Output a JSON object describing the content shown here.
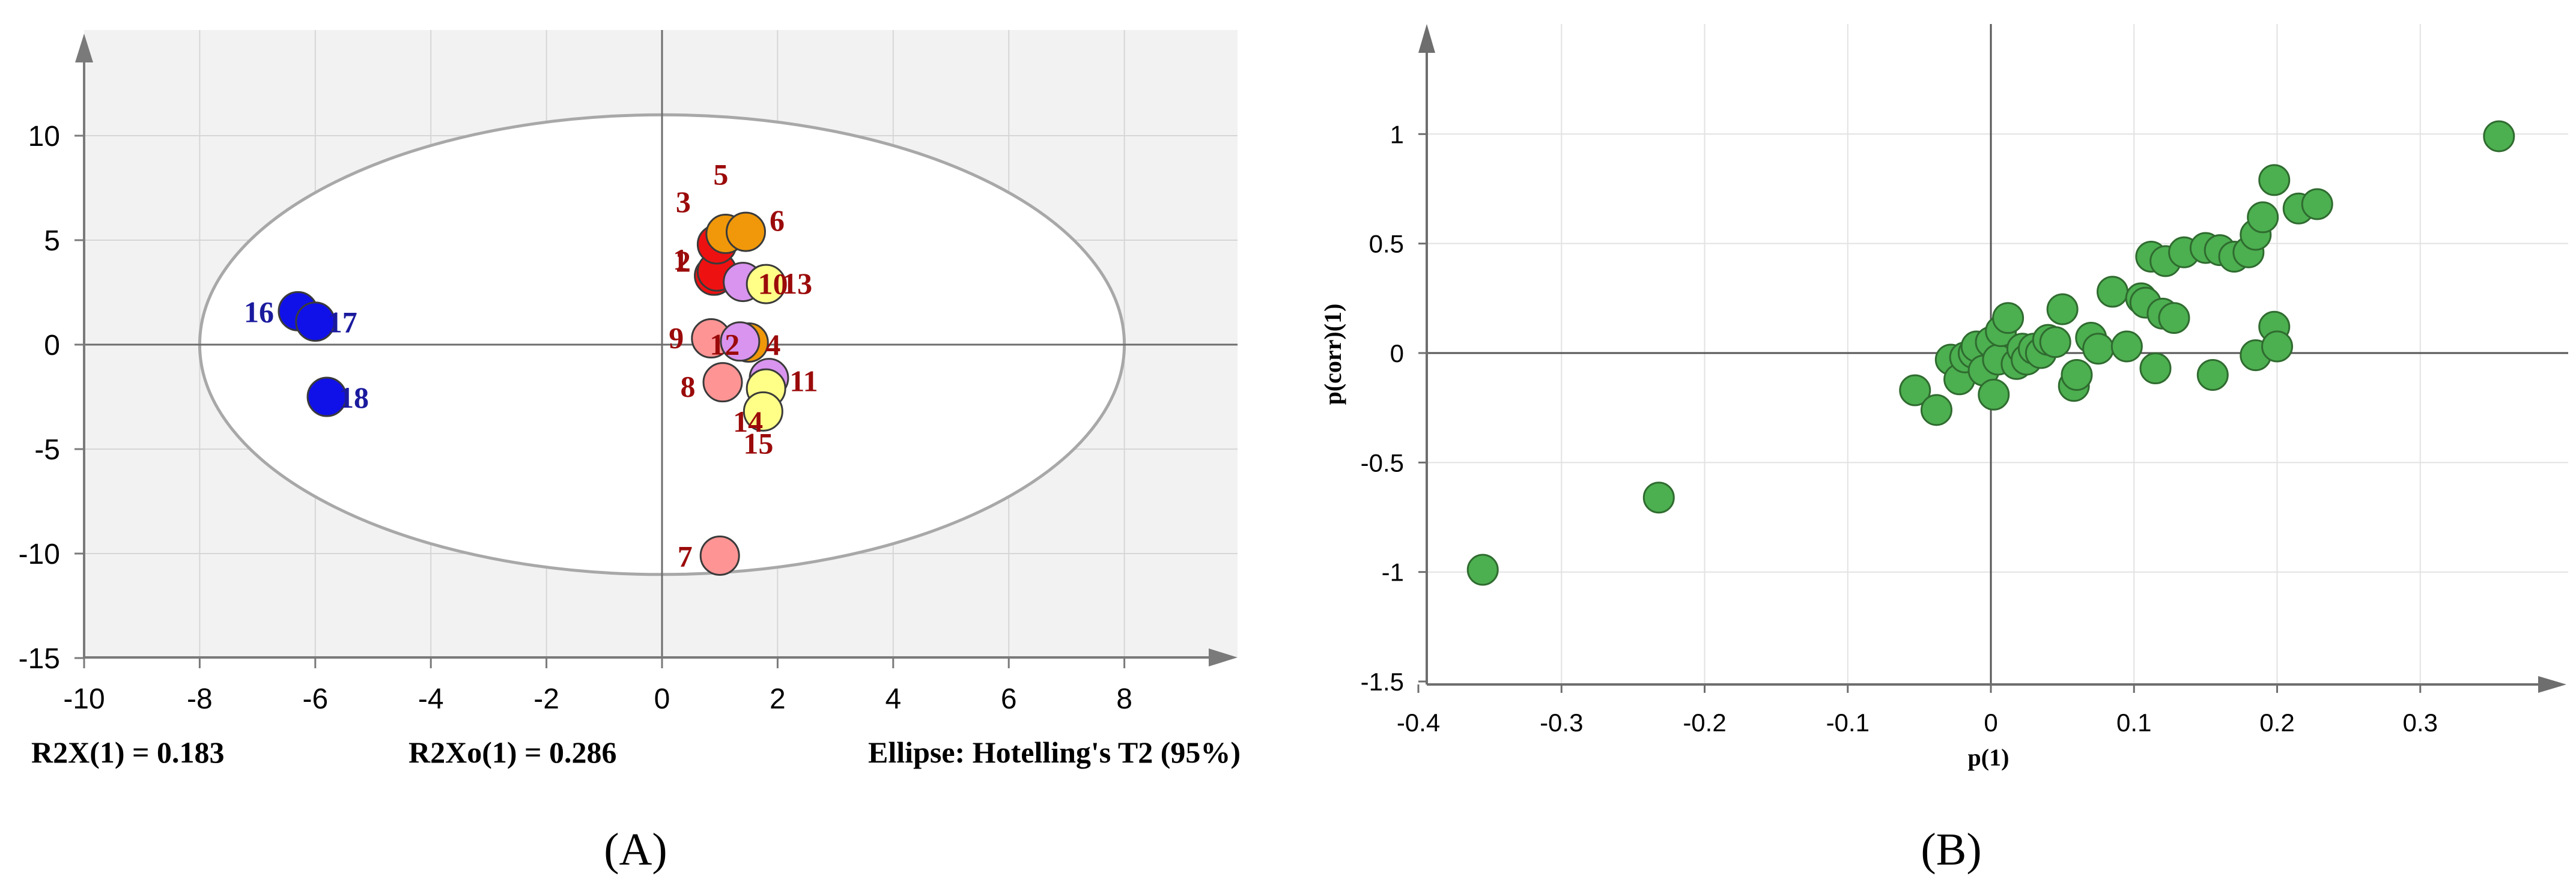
{
  "chart_data": [
    {
      "type": "scatter",
      "panel_label": "(A)",
      "xlim": [
        -10,
        10
      ],
      "ylim": [
        -15,
        15
      ],
      "x_ticks": [
        -10,
        -8,
        -6,
        -4,
        -2,
        0,
        2,
        4,
        6,
        8
      ],
      "y_ticks": [
        -15,
        -10,
        -5,
        0,
        5,
        10
      ],
      "grid": true,
      "annotations": [
        "R2X(1) = 0.183",
        "R2Xo(1) = 0.286",
        "Ellipse: Hotelling's T2 (95%)"
      ],
      "ellipse": {
        "center": [
          0,
          0
        ],
        "rx": 8,
        "ry": 11
      },
      "colors": {
        "red": "#ee1111",
        "orange": "#f0980a",
        "violet": "#d894ee",
        "yellow": "#ffff88",
        "salmon": "#ff9494",
        "blue": "#1010e8",
        "label_red": "#9b0a0a",
        "label_blue": "#1a1a9e"
      },
      "points": [
        {
          "label": "1",
          "x": 0.9,
          "y": 3.3,
          "color": "red",
          "label_color": "label_red"
        },
        {
          "label": "2",
          "x": 0.95,
          "y": 3.5,
          "color": "red",
          "label_color": "label_red"
        },
        {
          "label": "3",
          "x": 0.95,
          "y": 4.8,
          "color": "red",
          "label_color": "label_red"
        },
        {
          "label": "5",
          "x": 1.1,
          "y": 5.3,
          "color": "orange",
          "label_color": "label_red"
        },
        {
          "label": "6",
          "x": 1.45,
          "y": 5.4,
          "color": "orange",
          "label_color": "label_red"
        },
        {
          "label": "10",
          "x": 1.4,
          "y": 3.0,
          "color": "violet",
          "label_color": "label_red"
        },
        {
          "label": "13",
          "x": 1.8,
          "y": 2.9,
          "color": "yellow",
          "label_color": "label_red"
        },
        {
          "label": "9",
          "x": 0.85,
          "y": 0.3,
          "color": "salmon",
          "label_color": "label_red"
        },
        {
          "label": "12",
          "x": 1.5,
          "y": 0.1,
          "color": "orange",
          "label_color": "label_red"
        },
        {
          "label": "4",
          "x": 1.35,
          "y": 0.15,
          "color": "violet",
          "label_color": "label_red"
        },
        {
          "label": "8",
          "x": 1.05,
          "y": -1.8,
          "color": "salmon",
          "label_color": "label_red"
        },
        {
          "label": "11",
          "x": 1.85,
          "y": -1.6,
          "color": "violet",
          "label_color": "label_red"
        },
        {
          "label": "14",
          "x": 1.8,
          "y": -2.1,
          "color": "yellow",
          "label_color": "label_red"
        },
        {
          "label": "15",
          "x": 1.75,
          "y": -3.2,
          "color": "yellow",
          "label_color": "label_red"
        },
        {
          "label": "7",
          "x": 1.0,
          "y": -10.1,
          "color": "salmon",
          "label_color": "label_red"
        },
        {
          "label": "16",
          "x": -6.3,
          "y": 1.6,
          "color": "blue",
          "label_color": "label_blue"
        },
        {
          "label": "17",
          "x": -6.0,
          "y": 1.1,
          "color": "blue",
          "label_color": "label_blue"
        },
        {
          "label": "18",
          "x": -5.8,
          "y": -2.5,
          "color": "blue",
          "label_color": "label_blue"
        }
      ]
    },
    {
      "type": "scatter",
      "panel_label": "(B)",
      "xlabel": "p(1)",
      "ylabel": "p(corr)(1)",
      "xlim": [
        -0.4,
        0.4
      ],
      "ylim": [
        -1.5,
        1.5
      ],
      "x_ticks": [
        "-0.4",
        "-0.3",
        "-0.2",
        "-0.1",
        "0",
        "0.1",
        "0.2",
        "0.3"
      ],
      "y_ticks": [
        "-1.5",
        "-1",
        "-0.5",
        "0",
        "0.5",
        "1"
      ],
      "grid": true,
      "color": "#4caf50",
      "points": [
        [
          -0.355,
          -0.99
        ],
        [
          -0.232,
          -0.66
        ],
        [
          0.355,
          0.99
        ],
        [
          -0.053,
          -0.17
        ],
        [
          -0.038,
          -0.26
        ],
        [
          -0.028,
          -0.03
        ],
        [
          -0.022,
          -0.12
        ],
        [
          -0.018,
          -0.02
        ],
        [
          -0.012,
          0.0
        ],
        [
          -0.01,
          0.03
        ],
        [
          -0.005,
          -0.08
        ],
        [
          0.0,
          0.05
        ],
        [
          0.002,
          -0.19
        ],
        [
          0.005,
          -0.03
        ],
        [
          0.007,
          0.1
        ],
        [
          0.012,
          0.16
        ],
        [
          0.018,
          -0.05
        ],
        [
          0.022,
          0.02
        ],
        [
          0.025,
          -0.03
        ],
        [
          0.03,
          0.02
        ],
        [
          0.035,
          0.0
        ],
        [
          0.04,
          0.06
        ],
        [
          0.045,
          0.05
        ],
        [
          0.05,
          0.2
        ],
        [
          0.058,
          -0.15
        ],
        [
          0.06,
          -0.1
        ],
        [
          0.07,
          0.07
        ],
        [
          0.075,
          0.02
        ],
        [
          0.085,
          0.28
        ],
        [
          0.095,
          0.03
        ],
        [
          0.105,
          0.25
        ],
        [
          0.108,
          0.23
        ],
        [
          0.112,
          0.44
        ],
        [
          0.115,
          -0.07
        ],
        [
          0.12,
          0.18
        ],
        [
          0.122,
          0.42
        ],
        [
          0.128,
          0.16
        ],
        [
          0.135,
          0.46
        ],
        [
          0.15,
          0.48
        ],
        [
          0.155,
          -0.1
        ],
        [
          0.16,
          0.47
        ],
        [
          0.17,
          0.44
        ],
        [
          0.18,
          0.46
        ],
        [
          0.185,
          0.54
        ],
        [
          0.19,
          0.62
        ],
        [
          0.198,
          0.79
        ],
        [
          0.185,
          -0.01
        ],
        [
          0.198,
          0.12
        ],
        [
          0.2,
          0.03
        ],
        [
          0.215,
          0.66
        ],
        [
          0.228,
          0.68
        ]
      ]
    }
  ]
}
